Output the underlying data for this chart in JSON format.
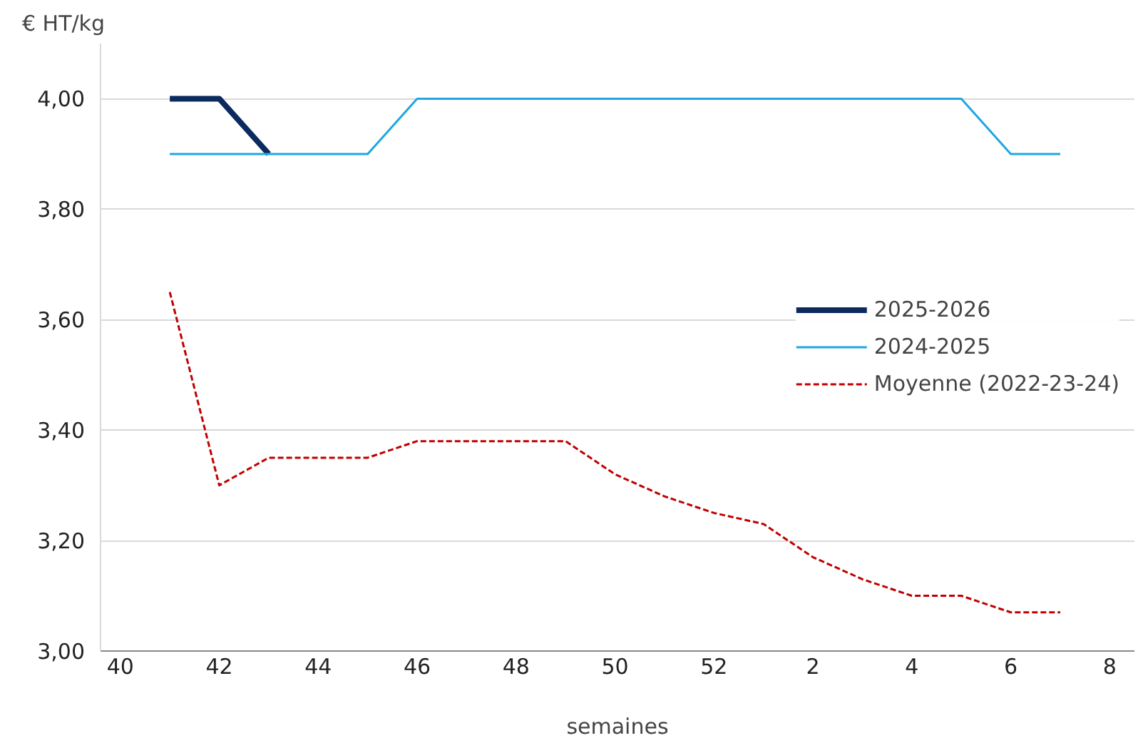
{
  "chart_data": {
    "type": "line",
    "ylabel": "€ HT/kg",
    "xlabel": "semaines",
    "categories": [
      "40",
      null,
      "42",
      null,
      "44",
      null,
      "46",
      null,
      "48",
      null,
      "50",
      null,
      "52",
      null,
      "2",
      null,
      "4",
      null,
      "6",
      null,
      "8"
    ],
    "series": [
      {
        "name": "2025-2026",
        "color": "#0b2a5e",
        "line_style": "solid",
        "values": [
          null,
          4.0,
          4.0,
          3.9,
          null,
          null,
          null,
          null,
          null,
          null,
          null,
          null,
          null,
          null,
          null,
          null,
          null,
          null,
          null,
          null,
          null
        ]
      },
      {
        "name": "2024-2025",
        "color": "#1ea7e1",
        "line_style": "solid",
        "values": [
          null,
          3.9,
          3.9,
          3.9,
          3.9,
          3.9,
          4.0,
          4.0,
          4.0,
          4.0,
          4.0,
          4.0,
          4.0,
          4.0,
          4.0,
          4.0,
          4.0,
          4.0,
          3.9,
          3.9,
          null
        ]
      },
      {
        "name": "Moyenne (2022-23-24)",
        "color": "#c00000",
        "line_style": "dashed",
        "values": [
          null,
          3.65,
          3.3,
          3.35,
          3.35,
          3.35,
          3.38,
          3.38,
          3.38,
          3.38,
          3.32,
          3.28,
          3.25,
          3.23,
          3.17,
          3.13,
          3.1,
          3.1,
          3.07,
          3.07,
          null
        ]
      }
    ],
    "ylim": [
      3.0,
      4.1
    ],
    "yticks": [
      {
        "value": 3.0,
        "label": "3,00"
      },
      {
        "value": 3.2,
        "label": "3,20"
      },
      {
        "value": 3.4,
        "label": "3,40"
      },
      {
        "value": 3.6,
        "label": "3,60"
      },
      {
        "value": 3.8,
        "label": "3,80"
      },
      {
        "value": 4.0,
        "label": "4,00"
      }
    ],
    "grid": "y",
    "legend": "right",
    "marker": "none"
  }
}
